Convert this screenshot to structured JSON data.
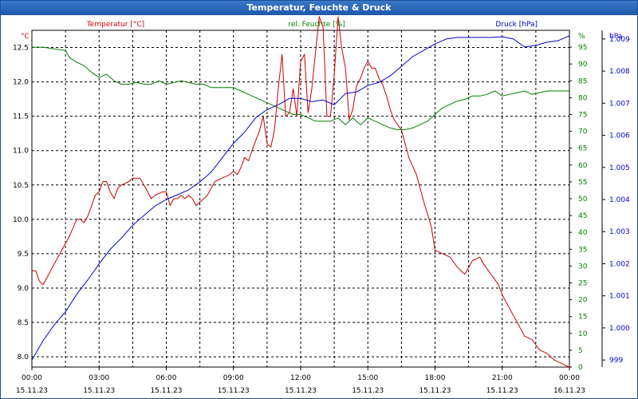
{
  "window": {
    "title": "Temperatur, Feuchte & Druck"
  },
  "colors": {
    "temperature": "#cc0000",
    "humidity": "#008000",
    "pressure": "#0000cc",
    "titlebar": "#2a65b5",
    "grid": "#000000"
  },
  "chart_data": {
    "type": "line",
    "title": "Temperatur, Feuchte & Druck",
    "grid": true,
    "x_tick_labels": [
      {
        "time": "00:00",
        "date": "15.11.23"
      },
      {
        "time": "03:00",
        "date": "15.11.23"
      },
      {
        "time": "06:00",
        "date": "15.11.23"
      },
      {
        "time": "09:00",
        "date": "15.11.23"
      },
      {
        "time": "12:00",
        "date": "15.11.23"
      },
      {
        "time": "15:00",
        "date": "15.11.23"
      },
      {
        "time": "18:00",
        "date": "15.11.23"
      },
      {
        "time": "21:00",
        "date": "15.11.23"
      },
      {
        "time": "00:00",
        "date": "16.11.23"
      }
    ],
    "x_unit": "hours",
    "xlim": [
      0,
      24
    ],
    "axes": {
      "temperature": {
        "unit_label": "°C",
        "ticks": [
          "8.0",
          "8.5",
          "9.0",
          "9.5",
          "10.0",
          "10.5",
          "11.0",
          "11.5",
          "12.0",
          "12.5"
        ],
        "ylim": [
          7.85,
          12.75
        ]
      },
      "humidity": {
        "unit_label": "%",
        "ticks": [
          "0",
          "5",
          "10",
          "15",
          "20",
          "25",
          "30",
          "35",
          "40",
          "45",
          "50",
          "55",
          "60",
          "65",
          "70",
          "75",
          "80",
          "85",
          "90",
          "95"
        ],
        "ylim": [
          0,
          100
        ]
      },
      "pressure": {
        "unit_label": "hPa",
        "ticks": [
          "999",
          "1.000",
          "1.001",
          "1.002",
          "1.003",
          "1.004",
          "1.005",
          "1.006",
          "1.007",
          "1.008",
          "1.009"
        ],
        "ylim": [
          998.78,
          1009.27
        ]
      }
    },
    "series": [
      {
        "name": "Temperatur [°C]",
        "axis": "temperature",
        "x": [
          0,
          0.17,
          0.33,
          0.5,
          0.67,
          1.0,
          1.33,
          1.67,
          2.0,
          2.17,
          2.33,
          2.5,
          2.67,
          2.83,
          3.0,
          3.17,
          3.33,
          3.5,
          3.67,
          3.83,
          4.0,
          4.33,
          4.5,
          4.67,
          4.83,
          5.0,
          5.17,
          5.33,
          5.5,
          5.83,
          6.0,
          6.17,
          6.33,
          6.5,
          6.67,
          6.83,
          7.0,
          7.17,
          7.33,
          7.5,
          7.83,
          8.17,
          8.5,
          8.83,
          9.0,
          9.17,
          9.33,
          9.5,
          9.67,
          9.83,
          10.0,
          10.17,
          10.33,
          10.5,
          10.67,
          10.83,
          11.0,
          11.17,
          11.33,
          11.5,
          11.67,
          11.83,
          12.0,
          12.17,
          12.33,
          12.5,
          12.67,
          12.83,
          13.0,
          13.17,
          13.33,
          13.5,
          13.67,
          13.83,
          14.0,
          14.17,
          14.33,
          14.5,
          14.67,
          14.83,
          15.0,
          15.17,
          15.33,
          15.5,
          15.67,
          15.83,
          16.0,
          16.17,
          16.5,
          16.83,
          17.17,
          17.5,
          17.83,
          18.0,
          18.33,
          18.67,
          19.0,
          19.33,
          19.67,
          20.0,
          20.17,
          20.5,
          20.83,
          21.0,
          21.33,
          21.67,
          22.0,
          22.33,
          22.67,
          23.0,
          23.33,
          23.67,
          24.0
        ],
        "values": [
          9.25,
          9.25,
          9.1,
          9.05,
          9.15,
          9.35,
          9.55,
          9.75,
          10.0,
          10.0,
          9.95,
          10.05,
          10.2,
          10.35,
          10.4,
          10.55,
          10.55,
          10.4,
          10.3,
          10.45,
          10.5,
          10.55,
          10.6,
          10.6,
          10.6,
          10.5,
          10.4,
          10.3,
          10.35,
          10.4,
          10.4,
          10.2,
          10.3,
          10.3,
          10.35,
          10.3,
          10.35,
          10.3,
          10.2,
          10.25,
          10.35,
          10.55,
          10.6,
          10.65,
          10.7,
          10.65,
          10.75,
          10.9,
          10.85,
          11.0,
          11.15,
          11.3,
          11.5,
          11.1,
          11.05,
          11.3,
          11.9,
          12.4,
          11.5,
          11.55,
          11.9,
          11.5,
          12.3,
          12.4,
          11.55,
          11.9,
          12.45,
          12.95,
          12.8,
          11.5,
          11.5,
          12.1,
          12.95,
          12.5,
          12.2,
          11.45,
          11.6,
          11.95,
          12.05,
          12.2,
          12.3,
          12.2,
          12.2,
          12.05,
          11.95,
          11.8,
          11.6,
          11.45,
          11.3,
          10.9,
          10.65,
          10.25,
          9.9,
          9.55,
          9.5,
          9.45,
          9.3,
          9.2,
          9.4,
          9.45,
          9.35,
          9.2,
          9.05,
          8.9,
          8.7,
          8.5,
          8.3,
          8.25,
          8.1,
          8.05,
          7.95,
          7.9,
          7.85
        ]
      },
      {
        "name": "rel. Feuchte [%]",
        "axis": "humidity",
        "x": [
          0,
          0.5,
          1.0,
          1.5,
          1.67,
          2.0,
          2.33,
          2.67,
          3.0,
          3.33,
          3.67,
          4.0,
          4.33,
          4.67,
          5.0,
          5.33,
          5.67,
          6.0,
          6.33,
          6.67,
          7.0,
          7.33,
          7.67,
          8.0,
          8.33,
          8.67,
          9.0,
          9.33,
          9.67,
          10.0,
          10.33,
          10.67,
          11.0,
          11.33,
          11.67,
          12.0,
          12.33,
          12.67,
          13.0,
          13.33,
          13.67,
          14.0,
          14.33,
          14.67,
          15.0,
          15.33,
          15.67,
          16.0,
          16.33,
          16.67,
          17.0,
          17.33,
          17.67,
          18.0,
          18.33,
          18.67,
          19.0,
          19.33,
          19.67,
          20.0,
          20.33,
          20.67,
          21.0,
          21.33,
          21.67,
          22.0,
          22.33,
          22.67,
          23.0,
          23.33,
          23.67,
          24.0
        ],
        "values": [
          95,
          95,
          94.5,
          94,
          92,
          90.5,
          89.5,
          87.5,
          86,
          87,
          85,
          84,
          84,
          84.5,
          84,
          84,
          85,
          84,
          84.5,
          85,
          84.5,
          84,
          84,
          83,
          83,
          83,
          83,
          82,
          81,
          80,
          79,
          78,
          77,
          76,
          75,
          75,
          74,
          73,
          73,
          73,
          74,
          72,
          74,
          72,
          74,
          73,
          72,
          71,
          70.5,
          70.5,
          71,
          72,
          73,
          75,
          77,
          78,
          79,
          79.5,
          80.5,
          80.5,
          81,
          82,
          80.5,
          81,
          81.5,
          82,
          81,
          81.5,
          82,
          82,
          82,
          82
        ]
      },
      {
        "name": "Druck [hPa]",
        "axis": "pressure",
        "x": [
          0,
          0.5,
          1.0,
          1.5,
          2.0,
          2.5,
          3.0,
          3.5,
          4.0,
          4.5,
          5.0,
          5.5,
          6.0,
          6.5,
          7.0,
          7.5,
          8.0,
          8.5,
          9.0,
          9.5,
          10.0,
          10.5,
          11.0,
          11.5,
          12.0,
          12.5,
          13.0,
          13.5,
          14.0,
          14.5,
          15.0,
          15.5,
          16.0,
          16.5,
          17.0,
          17.5,
          18.0,
          18.5,
          19.0,
          19.5,
          20.0,
          20.5,
          21.0,
          21.5,
          22.0,
          22.5,
          23.0,
          23.5,
          24.0
        ],
        "values": [
          999.0,
          999.6,
          1000.1,
          1000.5,
          1001.05,
          1001.5,
          1002.0,
          1002.45,
          1002.8,
          1003.2,
          1003.5,
          1003.8,
          1004.0,
          1004.15,
          1004.3,
          1004.55,
          1004.85,
          1005.3,
          1005.75,
          1006.1,
          1006.55,
          1006.8,
          1006.95,
          1007.15,
          1007.15,
          1007.05,
          1007.1,
          1006.95,
          1007.3,
          1007.35,
          1007.55,
          1007.65,
          1007.85,
          1008.15,
          1008.45,
          1008.65,
          1008.85,
          1009.0,
          1009.05,
          1009.05,
          1009.05,
          1009.05,
          1009.07,
          1009.0,
          1008.75,
          1008.8,
          1008.9,
          1008.95,
          1009.1
        ]
      }
    ]
  }
}
